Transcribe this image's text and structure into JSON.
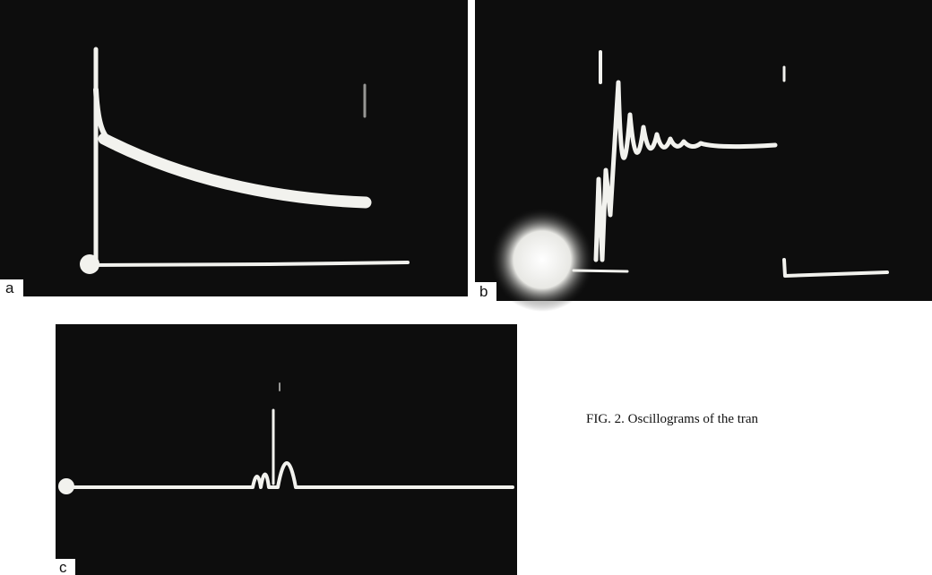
{
  "figure": {
    "panels": [
      {
        "label": "a"
      },
      {
        "label": "b"
      },
      {
        "label": "c"
      }
    ],
    "caption": "FIG. 2. Oscillograms of the tran"
  }
}
